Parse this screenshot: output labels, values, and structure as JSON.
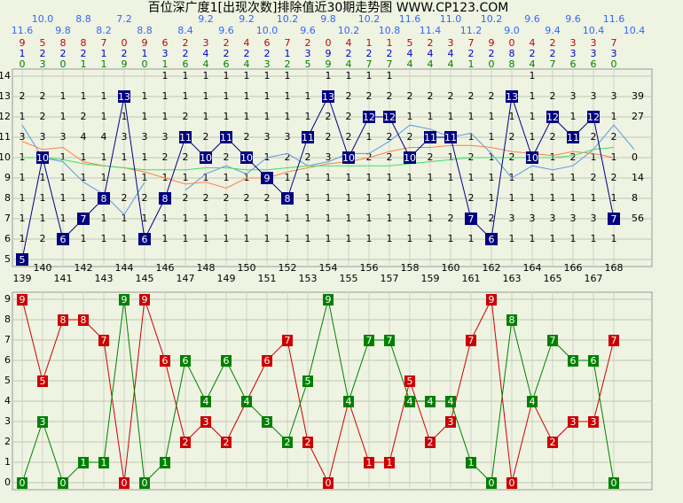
{
  "title": "百位深广度1[出现次数]排除值近30期走势图 WWW.CP123.COM",
  "chart_data": [
    {
      "type": "trend",
      "categories": [
        139,
        140,
        141,
        142,
        143,
        144,
        145,
        146,
        147,
        148,
        149,
        150,
        151,
        152,
        153,
        154,
        155,
        156,
        157,
        158,
        159,
        160,
        161,
        162,
        163,
        164,
        165,
        166,
        167,
        168
      ],
      "avg_labels": [
        11.6,
        {
          "value": 10,
          "label": "10.0"
        },
        9.8,
        8.8,
        8.2,
        7.2,
        8.8,
        null,
        8.4,
        9.2,
        9.6,
        9.2,
        {
          "value": 10,
          "label": "10.0"
        },
        10.2,
        9.6,
        9.8,
        10.2,
        10.2,
        10.8,
        11.6,
        11.4,
        {
          "value": 11,
          "label": "11.0"
        },
        11.2,
        10.2,
        {
          "value": 9,
          "label": "9.0"
        },
        9.6,
        9.4,
        9.6,
        10.4,
        11.6,
        10.4
      ],
      "avg_color": "#5b9be0",
      "digit_rows": [
        {
          "color": "#cc0000",
          "values": [
            9,
            5,
            8,
            8,
            7,
            0,
            9,
            6,
            2,
            3,
            2,
            4,
            6,
            7,
            2,
            0,
            4,
            1,
            1,
            5,
            2,
            3,
            7,
            9,
            0,
            4,
            2,
            3,
            3,
            7
          ]
        },
        {
          "color": "#0000cc",
          "values": [
            1,
            2,
            2,
            2,
            1,
            2,
            1,
            3,
            2,
            4,
            2,
            2,
            2,
            1,
            3,
            9,
            2,
            2,
            2,
            4,
            4,
            4,
            2,
            2,
            8,
            2,
            2,
            3,
            3,
            3
          ]
        },
        {
          "color": "#008000",
          "values": [
            0,
            3,
            0,
            1,
            1,
            9,
            0,
            1,
            6,
            4,
            6,
            4,
            3,
            2,
            5,
            9,
            4,
            7,
            7,
            4,
            4,
            4,
            1,
            0,
            8,
            4,
            7,
            6,
            6,
            0
          ]
        }
      ],
      "ylim": [
        5,
        14
      ],
      "yticks": [
        14,
        13,
        12,
        11,
        10,
        9,
        8,
        7,
        6,
        5
      ],
      "grid": true,
      "right_labels": [
        null,
        39,
        27,
        null,
        0,
        14,
        8,
        56,
        null,
        null
      ],
      "cells": [
        [
          null,
          null,
          null,
          null,
          null,
          null,
          null,
          1,
          1,
          1,
          1,
          1,
          1,
          1,
          null,
          1,
          1,
          1,
          1,
          null,
          null,
          null,
          null,
          null,
          null,
          1,
          null,
          null,
          null,
          null
        ],
        [
          2,
          2,
          1,
          1,
          1,
          null,
          1,
          1,
          1,
          1,
          1,
          1,
          1,
          1,
          1,
          null,
          2,
          2,
          2,
          2,
          2,
          2,
          2,
          2,
          null,
          1,
          2,
          3,
          3,
          3
        ],
        [
          1,
          2,
          1,
          2,
          1,
          1,
          1,
          1,
          2,
          1,
          1,
          1,
          1,
          1,
          1,
          2,
          2,
          null,
          null,
          1,
          1,
          1,
          1,
          1,
          1,
          1,
          null,
          1,
          null,
          1
        ],
        [
          3,
          3,
          3,
          4,
          4,
          3,
          3,
          3,
          null,
          2,
          null,
          2,
          3,
          3,
          null,
          2,
          2,
          1,
          2,
          2,
          null,
          null,
          1,
          1,
          2,
          1,
          2,
          null,
          2,
          2
        ],
        [
          1,
          null,
          1,
          1,
          1,
          1,
          1,
          2,
          2,
          null,
          2,
          null,
          1,
          2,
          2,
          3,
          null,
          2,
          2,
          null,
          2,
          1,
          2,
          1,
          2,
          null,
          1,
          2,
          1,
          1
        ],
        [
          1,
          1,
          1,
          1,
          1,
          1,
          1,
          1,
          1,
          1,
          1,
          1,
          null,
          1,
          1,
          1,
          1,
          1,
          1,
          1,
          1,
          1,
          1,
          1,
          1,
          1,
          1,
          1,
          2,
          2
        ],
        [
          1,
          1,
          1,
          1,
          null,
          2,
          2,
          null,
          2,
          2,
          2,
          2,
          2,
          null,
          1,
          1,
          1,
          1,
          1,
          1,
          1,
          1,
          2,
          1,
          1,
          1,
          1,
          1,
          1,
          1
        ],
        [
          1,
          1,
          1,
          null,
          1,
          1,
          1,
          1,
          1,
          1,
          1,
          1,
          1,
          1,
          1,
          1,
          1,
          1,
          1,
          1,
          1,
          2,
          null,
          2,
          3,
          3,
          3,
          3,
          3,
          null
        ],
        [
          1,
          2,
          null,
          1,
          1,
          1,
          null,
          1,
          1,
          1,
          1,
          1,
          1,
          1,
          1,
          1,
          1,
          1,
          1,
          1,
          1,
          1,
          1,
          null,
          1,
          1,
          1,
          1,
          1,
          1
        ],
        [
          null,
          null,
          null,
          null,
          null,
          null,
          null,
          null,
          null,
          null,
          null,
          null,
          null,
          null,
          null,
          null,
          null,
          null,
          null,
          null,
          null,
          null,
          null,
          null,
          null,
          null,
          null,
          null,
          null,
          null
        ]
      ],
      "series": [
        {
          "color": "#000080",
          "markers": true,
          "values": [
            5,
            10,
            6,
            7,
            8,
            13,
            6,
            8,
            11,
            10,
            11,
            10,
            9,
            8,
            11,
            13,
            10,
            12,
            12,
            10,
            11,
            11,
            7,
            6,
            13,
            10,
            12,
            11,
            12,
            7
          ]
        },
        {
          "color": "#ff8040",
          "markers": false,
          "values": [
            10.8,
            10.4,
            10.5,
            9.8,
            9.6,
            9.5,
            9.3,
            9.0,
            8.7,
            8.8,
            8.5,
            9.0,
            9.0,
            9.3,
            9.5,
            9.7,
            9.8,
            10.0,
            10.3,
            10.5,
            10.5,
            10.6,
            10.6,
            10.5,
            10.3,
            10.2,
            10.1,
            10.3,
            10.2,
            10.0
          ]
        },
        {
          "color": "#40e060",
          "markers": false,
          "values": [
            10.0,
            10.0,
            9.9,
            9.7,
            9.6,
            9.5,
            9.4,
            9.4,
            9.4,
            9.5,
            9.5,
            9.4,
            9.4,
            9.5,
            9.6,
            9.6,
            9.6,
            9.6,
            9.6,
            9.7,
            9.8,
            9.9,
            10.0,
            10.0,
            10.0,
            10.0,
            10.0,
            10.1,
            10.4,
            10.5
          ]
        }
      ]
    },
    {
      "type": "line",
      "ylim": [
        0,
        9
      ],
      "yticks": [
        9,
        8,
        7,
        6,
        5,
        4,
        3,
        2,
        1,
        0
      ],
      "grid": true,
      "series": [
        {
          "color": "#cc0000",
          "values": [
            9,
            5,
            8,
            8,
            7,
            0,
            9,
            6,
            2,
            3,
            2,
            4,
            6,
            7,
            2,
            0,
            4,
            1,
            1,
            5,
            2,
            3,
            7,
            9,
            0,
            4,
            2,
            3,
            3,
            7
          ]
        },
        {
          "color": "#008000",
          "values": [
            0,
            3,
            0,
            1,
            1,
            9,
            0,
            1,
            6,
            4,
            6,
            4,
            3,
            2,
            5,
            9,
            4,
            7,
            7,
            4,
            4,
            4,
            1,
            0,
            8,
            4,
            7,
            6,
            6,
            0
          ]
        }
      ]
    }
  ]
}
